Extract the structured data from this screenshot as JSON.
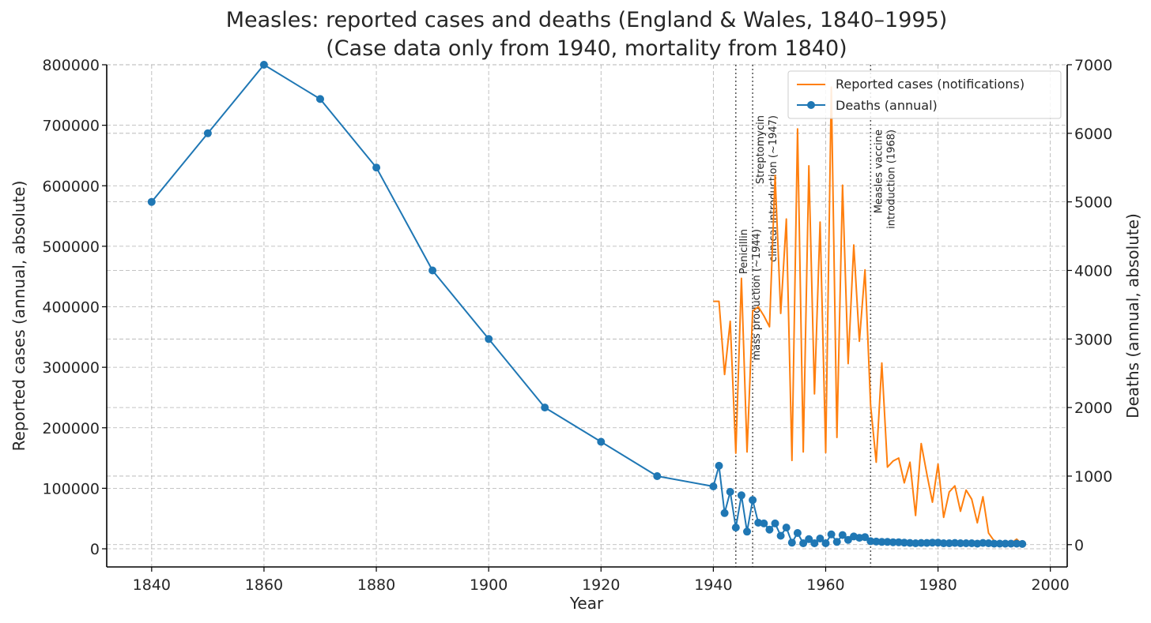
{
  "chart_data": {
    "type": "line",
    "title": "Measles: reported cases and deaths (England & Wales, 1840–1995)",
    "subtitle": "(Case data only from 1940, mortality from 1840)",
    "xlabel": "Year",
    "ylabel_left": "Reported cases (annual, absolute)",
    "ylabel_right": "Deaths (annual, absolute)",
    "xlim": [
      1832,
      2003
    ],
    "ylim_left": [
      -30000,
      800000
    ],
    "ylim_right": [
      -325,
      7000
    ],
    "x_ticks": [
      1840,
      1860,
      1880,
      1900,
      1920,
      1940,
      1960,
      1980,
      2000
    ],
    "y_ticks_left": [
      0,
      100000,
      200000,
      300000,
      400000,
      500000,
      600000,
      700000,
      800000
    ],
    "y_ticks_right": [
      0,
      1000,
      2000,
      3000,
      4000,
      5000,
      6000,
      7000
    ],
    "grid": true,
    "legend_position": "top-right",
    "series": [
      {
        "name": "Reported cases (notifications)",
        "axis": "left",
        "color": "#ff7f0e",
        "marker": "none",
        "x": [
          1940,
          1941,
          1942,
          1943,
          1944,
          1945,
          1946,
          1947,
          1948,
          1949,
          1950,
          1951,
          1952,
          1953,
          1954,
          1955,
          1956,
          1957,
          1958,
          1959,
          1960,
          1961,
          1962,
          1963,
          1964,
          1965,
          1966,
          1967,
          1968,
          1969,
          1970,
          1971,
          1972,
          1973,
          1974,
          1975,
          1976,
          1977,
          1978,
          1979,
          1980,
          1981,
          1982,
          1983,
          1984,
          1985,
          1986,
          1987,
          1988,
          1989,
          1990,
          1991,
          1992,
          1993,
          1994,
          1995
        ],
        "y": [
          409000,
          409000,
          288000,
          376000,
          158000,
          447000,
          160000,
          393000,
          400000,
          385000,
          367000,
          617000,
          389000,
          545000,
          146000,
          694000,
          160000,
          633000,
          256000,
          540000,
          159000,
          763000,
          184000,
          601000,
          306000,
          502000,
          343000,
          461000,
          237000,
          143000,
          307000,
          135000,
          145000,
          150000,
          109000,
          143000,
          55000,
          174000,
          124000,
          77000,
          140000,
          52000,
          94000,
          104000,
          62000,
          97000,
          82000,
          43000,
          86000,
          26000,
          13000,
          9000,
          10000,
          9000,
          16000,
          7000
        ]
      },
      {
        "name": "Deaths (annual)",
        "axis": "right",
        "color": "#1f77b4",
        "marker": "circle",
        "x": [
          1840,
          1850,
          1860,
          1870,
          1880,
          1890,
          1900,
          1910,
          1920,
          1930,
          1940,
          1941,
          1942,
          1943,
          1944,
          1945,
          1946,
          1947,
          1948,
          1949,
          1950,
          1951,
          1952,
          1953,
          1954,
          1955,
          1956,
          1957,
          1958,
          1959,
          1960,
          1961,
          1962,
          1963,
          1964,
          1965,
          1966,
          1967,
          1968,
          1969,
          1970,
          1971,
          1972,
          1973,
          1974,
          1975,
          1976,
          1977,
          1978,
          1979,
          1980,
          1981,
          1982,
          1983,
          1984,
          1985,
          1986,
          1987,
          1988,
          1989,
          1990,
          1991,
          1992,
          1993,
          1994,
          1995
        ],
        "y": [
          5000,
          6000,
          7000,
          6500,
          5500,
          4000,
          3000,
          2000,
          1500,
          1000,
          850,
          1150,
          460,
          770,
          250,
          720,
          190,
          650,
          320,
          310,
          220,
          310,
          130,
          250,
          30,
          170,
          20,
          80,
          20,
          90,
          20,
          150,
          40,
          140,
          70,
          120,
          100,
          110,
          50,
          45,
          40,
          40,
          35,
          35,
          30,
          25,
          20,
          25,
          25,
          30,
          30,
          20,
          20,
          25,
          20,
          20,
          20,
          15,
          25,
          20,
          15,
          15,
          15,
          15,
          15,
          10
        ]
      }
    ],
    "annotations": [
      {
        "x": 1944,
        "lines": [
          "Penicillin",
          "mass production (~1944)"
        ]
      },
      {
        "x": 1947,
        "lines": [
          "Streptomycin",
          "clinical introduction (~1947)"
        ]
      },
      {
        "x": 1968,
        "lines": [
          "Measles vaccine",
          "introduction (1968)"
        ]
      }
    ]
  }
}
